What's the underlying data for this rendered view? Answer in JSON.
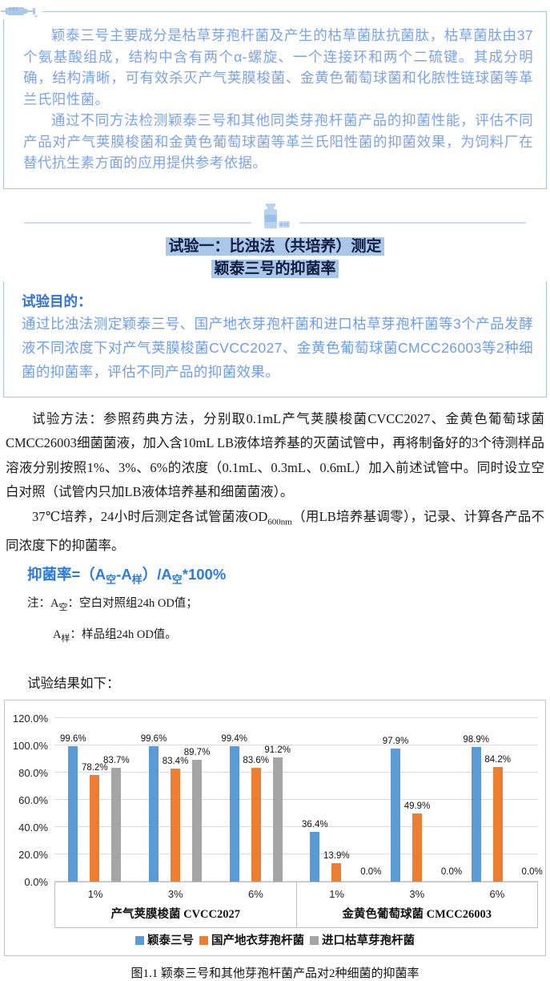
{
  "intro": {
    "para1": "颖泰三号主要成分是枯草芽孢杆菌及产生的枯草菌肽抗菌肽，枯草菌肽由37个氨基酸组成，结构中含有两个α-螺旋、一个连接环和两个二硫键。其成分明确，结构清晰，可有效杀灭产气荚膜梭菌、金黄色葡萄球菌和化脓性链球菌等革兰氏阳性菌。",
    "para2": "通过不同方法检测颖泰三号和其他同类芽孢杆菌产品的抑菌性能，评估不同产品对产气荚膜梭菌和金黄色葡萄球菌等革兰氏阳性菌的抑菌效果，为饲料厂在替代抗生素方面的应用提供参考依据。"
  },
  "header": {
    "line1": "试验一：比浊法（共培养）测定",
    "line2": "颖泰三号的抑菌率"
  },
  "purpose": {
    "label": "试验目的：",
    "body": "通过比浊法测定颖泰三号、国产地衣芽孢杆菌和进口枯草芽孢杆菌等3个产品发酵液不同浓度下对产气荚膜梭菌CVCC2027、金黄色葡萄球菌CMCC26003等2种细菌的抑菌率，评估不同产品的抑菌效果。"
  },
  "method": {
    "para1": "试验方法：参照药典方法，分别取0.1mL产气荚膜梭菌CVCC2027、金黄色葡萄球菌CMCC26003细菌菌液，加入含10mL LB液体培养基的灭菌试管中，再将制备好的3个待测样品溶液分别按照1%、3%、6%的浓度（0.1mL、0.3mL、0.6mL）加入前述试管中。同时设立空白对照（试管内只加LB液体培养基和细菌菌液）。",
    "para2_prefix": "37℃培养，24小时后测定各试管菌液OD",
    "para2_sub": "600nm",
    "para2_suffix": "（用LB培养基调零），记录、计算各产品不同浓度下的抑菌率。"
  },
  "formula": {
    "p1": "抑菌率=（A",
    "s1": "空",
    "p2": "-A",
    "s2": "样",
    "p3": "）/A",
    "s3": "空",
    "p4": "*100%"
  },
  "notes": {
    "n1_prefix": "注：A",
    "n1_sub": "空",
    "n1_text": "：空白对照组24h OD值；",
    "n2_prefix": "A",
    "n2_sub": "样",
    "n2_text": "：样品组24h OD值。"
  },
  "results_label": "试验结果如下：",
  "chart_data": {
    "type": "bar",
    "title": "",
    "xlabel": "",
    "ylabel": "",
    "ylim": [
      0,
      120
    ],
    "ytick_step": 20,
    "ytick_suffix": "%",
    "grid": true,
    "legend_position": "bottom",
    "categories": [
      "1%",
      "3%",
      "6%",
      "1%",
      "3%",
      "6%"
    ],
    "groups": [
      {
        "name": "产气荚膜梭菌 CVCC2027",
        "concentrations": [
          "1%",
          "3%",
          "6%"
        ]
      },
      {
        "name": "金黄色葡萄球菌 CMCC26003",
        "concentrations": [
          "1%",
          "3%",
          "6%"
        ]
      }
    ],
    "series": [
      {
        "name": "颖泰三号",
        "color": "#5b9bd5",
        "values": [
          99.6,
          99.6,
          99.4,
          36.4,
          97.9,
          98.9
        ]
      },
      {
        "name": "国产地衣芽孢杆菌",
        "color": "#ed7d31",
        "values": [
          78.2,
          83.4,
          83.6,
          13.9,
          49.9,
          84.2
        ]
      },
      {
        "name": "进口枯草芽孢杆菌",
        "color": "#a5a5a5",
        "values": [
          83.7,
          89.7,
          91.2,
          0.0,
          0.0,
          0.0
        ]
      }
    ]
  },
  "caption": "图1.1 颖泰三号和其他芽孢杆菌产品对2种细菌的抑菌率",
  "colors": {
    "accent_border": "#a6c5e8",
    "intro_text": "#7ba3ec",
    "highlight_bg": "#aac7e8",
    "formula_blue": "#2a7ae0",
    "bar_blue": "#5b9bd5",
    "bar_orange": "#ed7d31",
    "bar_gray": "#a5a5a5"
  }
}
